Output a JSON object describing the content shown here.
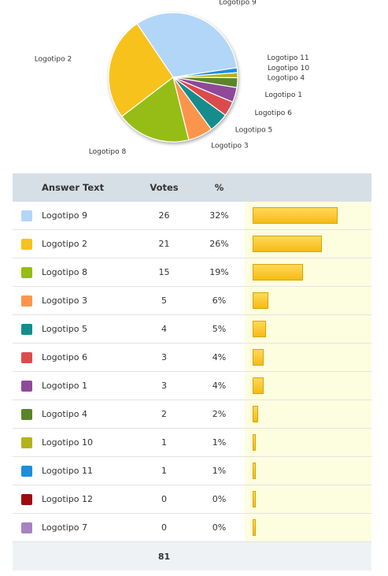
{
  "chart_data": [
    {
      "type": "pie",
      "series": [
        {
          "name": "Logotipo 9",
          "value": 26,
          "color": "#b2d6f8"
        },
        {
          "name": "Logotipo 11",
          "value": 1,
          "color": "#1b8fdc"
        },
        {
          "name": "Logotipo 10",
          "value": 1,
          "color": "#b4b21c"
        },
        {
          "name": "Logotipo 4",
          "value": 2,
          "color": "#5b8429"
        },
        {
          "name": "Logotipo 1",
          "value": 3,
          "color": "#8f4a98"
        },
        {
          "name": "Logotipo 6",
          "value": 3,
          "color": "#db4c4c"
        },
        {
          "name": "Logotipo 5",
          "value": 4,
          "color": "#148d8c"
        },
        {
          "name": "Logotipo 3",
          "value": 5,
          "color": "#fd944c"
        },
        {
          "name": "Logotipo 8",
          "value": 15,
          "color": "#95bd13"
        },
        {
          "name": "Logotipo 2",
          "value": 21,
          "color": "#f8c21c"
        }
      ]
    },
    {
      "type": "table",
      "columns": [
        "Answer Text",
        "Votes",
        "%"
      ],
      "rows": [
        {
          "label": "Logotipo 9",
          "votes": "26",
          "pct": "32%",
          "value": 32,
          "color": "#b2d6f8"
        },
        {
          "label": "Logotipo 2",
          "votes": "21",
          "pct": "26%",
          "value": 26,
          "color": "#f8c21c"
        },
        {
          "label": "Logotipo 8",
          "votes": "15",
          "pct": "19%",
          "value": 19,
          "color": "#95bd13"
        },
        {
          "label": "Logotipo 3",
          "votes": "5",
          "pct": "6%",
          "value": 6,
          "color": "#fd944c"
        },
        {
          "label": "Logotipo 5",
          "votes": "4",
          "pct": "5%",
          "value": 5,
          "color": "#148d8c"
        },
        {
          "label": "Logotipo 6",
          "votes": "3",
          "pct": "4%",
          "value": 4,
          "color": "#db4c4c"
        },
        {
          "label": "Logotipo 1",
          "votes": "3",
          "pct": "4%",
          "value": 4,
          "color": "#8f4a98"
        },
        {
          "label": "Logotipo 4",
          "votes": "2",
          "pct": "2%",
          "value": 2,
          "color": "#5b8429"
        },
        {
          "label": "Logotipo 10",
          "votes": "1",
          "pct": "1%",
          "value": 1,
          "color": "#b4b21c"
        },
        {
          "label": "Logotipo 11",
          "votes": "1",
          "pct": "1%",
          "value": 1,
          "color": "#1b8fdc"
        },
        {
          "label": "Logotipo 12",
          "votes": "0",
          "pct": "0%",
          "value": 0,
          "color": "#9b0d0d"
        },
        {
          "label": "Logotipo 7",
          "votes": "0",
          "pct": "0%",
          "value": 0,
          "color": "#a782c2"
        }
      ],
      "total_votes": "81"
    }
  ]
}
